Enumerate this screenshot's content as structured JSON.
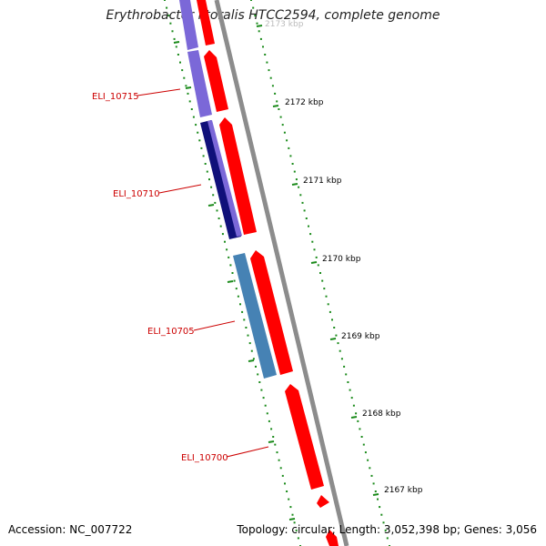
{
  "title": "Erythrobacter litoralis HTCC2594, complete genome",
  "footer": {
    "accession": "Accession: NC_007722",
    "summary": "Topology: circular; Length: 3,052,398 bp; Genes: 3,056"
  },
  "colors": {
    "forward_cds": "#ff0000",
    "reverse_cds_purple": "#7b68d8",
    "reverse_cds_navy": "#10107a",
    "reverse_cds_steel": "#4682b4",
    "backbone": "#8c8c8c",
    "ticks": "#1a8a1a",
    "gene_labels": "#cc0000"
  },
  "scale_labels": [
    "2173 kbp",
    "2172 kbp",
    "2171 kbp",
    "2170 kbp",
    "2169 kbp",
    "2168 kbp",
    "2167 kbp"
  ],
  "gene_labels": [
    "ELI_10715",
    "ELI_10710",
    "ELI_10705",
    "ELI_10700"
  ],
  "legend_visible": false
}
